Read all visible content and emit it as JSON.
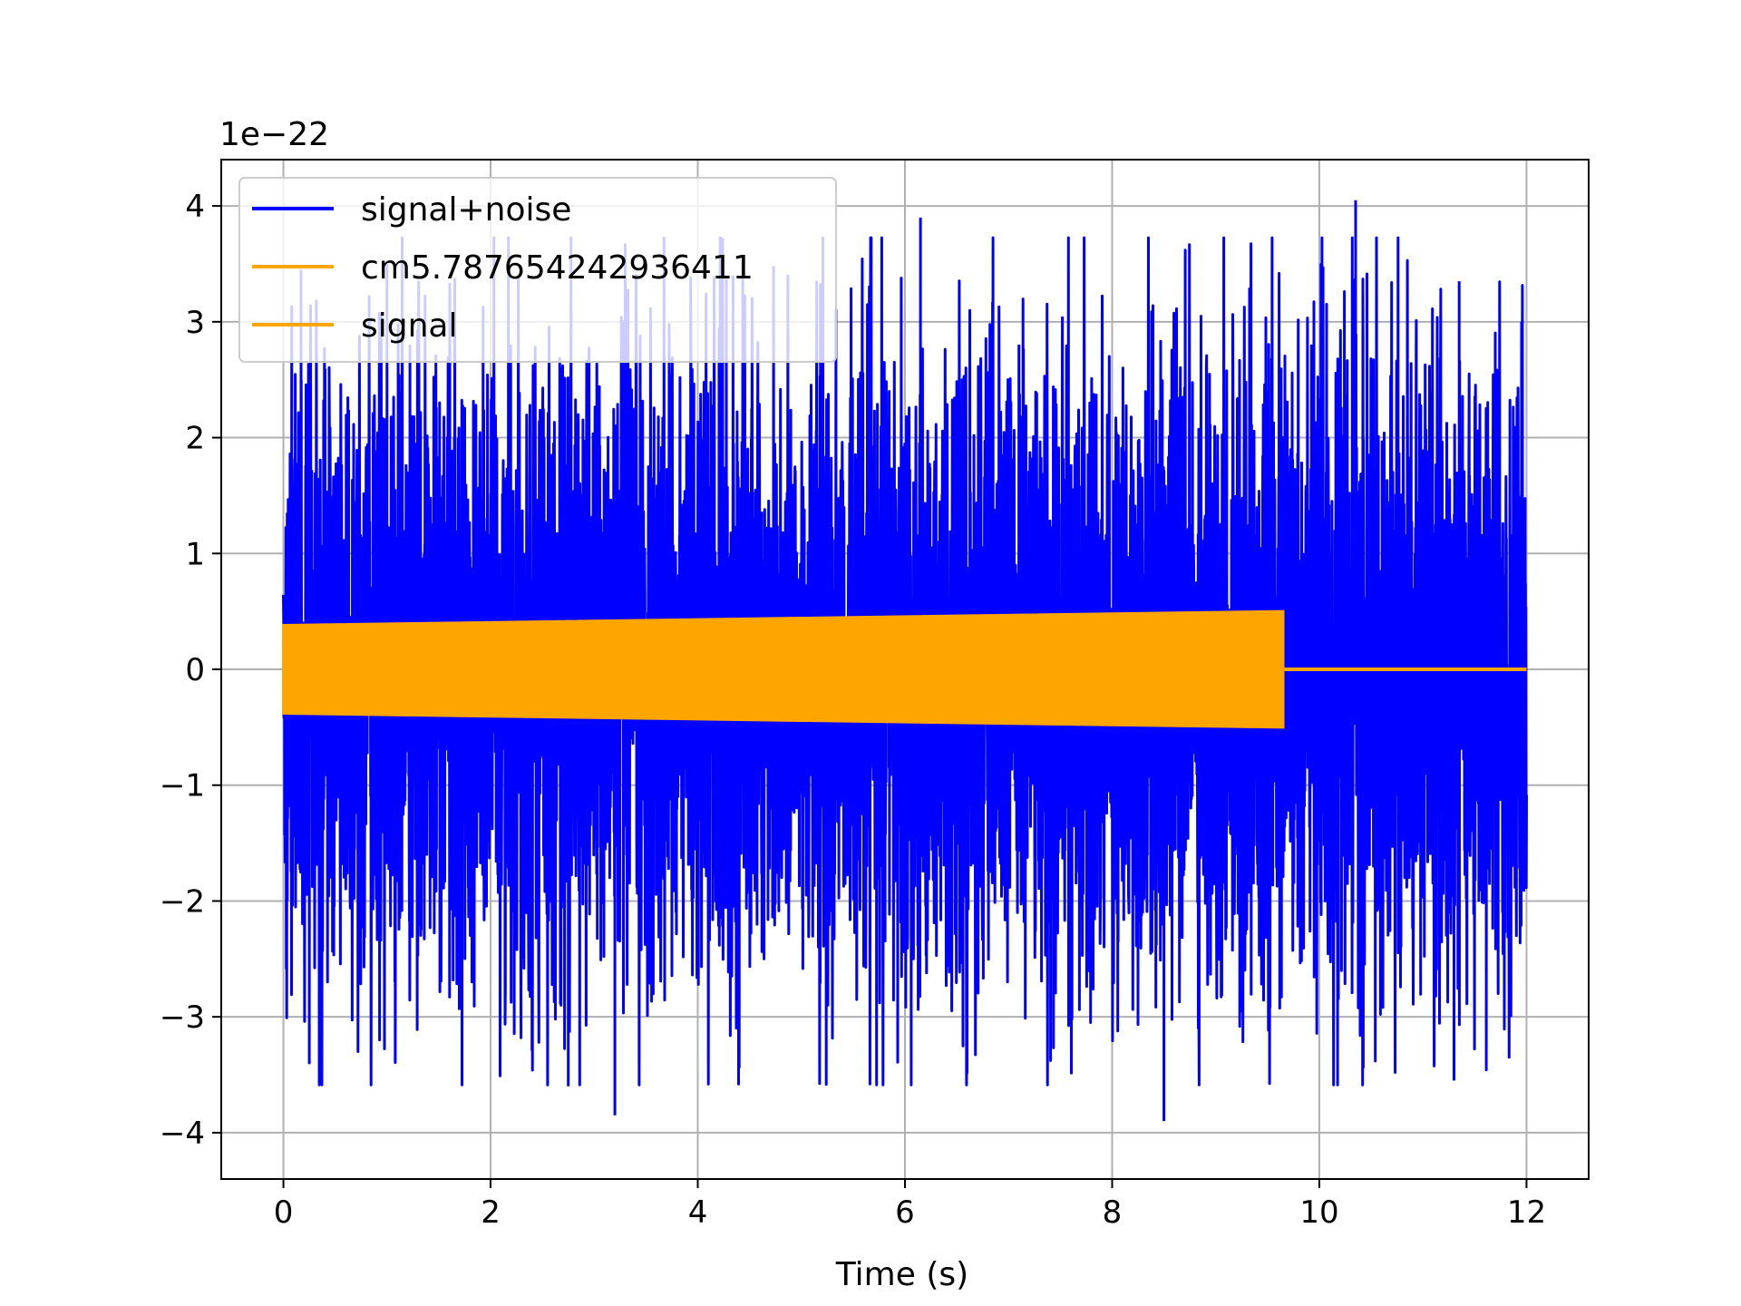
{
  "chart_data": {
    "type": "line",
    "title": "",
    "xlabel": "Time (s)",
    "ylabel": "",
    "y_offset_text": "1e−22",
    "xlim": [
      -0.6,
      12.6
    ],
    "ylim": [
      -4.4,
      4.4
    ],
    "x_ticks": [
      0,
      2,
      4,
      6,
      8,
      10,
      12
    ],
    "x_tick_labels": [
      "0",
      "2",
      "4",
      "6",
      "8",
      "10",
      "12"
    ],
    "y_ticks": [
      -4,
      -3,
      -2,
      -1,
      0,
      1,
      2,
      3,
      4
    ],
    "y_tick_labels": [
      "−4",
      "−3",
      "−2",
      "−1",
      "0",
      "1",
      "2",
      "3",
      "4"
    ],
    "grid": true,
    "legend_position": "upper-left",
    "series": [
      {
        "name": "signal+noise",
        "color": "#0000ff",
        "x_range": [
          0,
          12
        ],
        "envelope": {
          "typical_amplitude": 1.8,
          "peak_max": 4.05,
          "peak_min": -3.9
        },
        "peaks": [
          {
            "x": 0.17,
            "y": 3.45
          },
          {
            "x": 1.0,
            "y": 3.5
          },
          {
            "x": 2.75,
            "y": -3.6
          },
          {
            "x": 3.2,
            "y": -3.85
          },
          {
            "x": 6.15,
            "y": 3.9
          },
          {
            "x": 8.5,
            "y": -3.9
          },
          {
            "x": 10.35,
            "y": 4.05
          },
          {
            "x": 11.3,
            "y": -3.55
          },
          {
            "x": 11.35,
            "y": 3.35
          }
        ]
      },
      {
        "name": "cm5.787654242936411",
        "color": "#ffa500",
        "x_range": [
          0,
          9.65
        ],
        "amplitude_start": 0.38,
        "amplitude_end": 0.5
      },
      {
        "name": "signal",
        "color": "#ffa500",
        "x_range": [
          9.65,
          12
        ],
        "amplitude_start": 0.0,
        "amplitude_end": 0.0
      }
    ]
  },
  "colors": {
    "grid": "#b0b0b0",
    "axes": "#000000",
    "legend_border": "#cccccc"
  }
}
